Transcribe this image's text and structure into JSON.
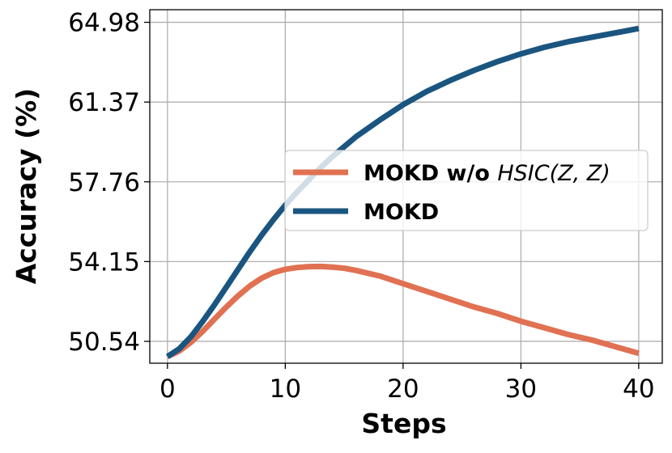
{
  "chart_data": {
    "type": "line",
    "title": "",
    "xlabel": "Steps",
    "ylabel": "Accuracy (%)",
    "xlim": [
      -1.5,
      42
    ],
    "ylim": [
      49.55,
      65.55
    ],
    "xticks": [
      0,
      10,
      20,
      30,
      40
    ],
    "yticks": [
      50.54,
      54.15,
      57.76,
      61.37,
      64.98
    ],
    "ytick_labels": [
      "50.54",
      "54.15",
      "57.76",
      "61.37",
      "64.98"
    ],
    "grid": true,
    "legend_position": "center-right",
    "series": [
      {
        "name": "MOKD w/o HSIC(Z, Z)",
        "legend_bold": "MOKD w/o ",
        "legend_math": "HSIC(Z, Z)",
        "color": "#E07152",
        "x": [
          0,
          1,
          2,
          3,
          4,
          5,
          6,
          7,
          8,
          9,
          10,
          11,
          12,
          13,
          14,
          15,
          16,
          18,
          20,
          22,
          24,
          26,
          28,
          30,
          32,
          34,
          36,
          38,
          40
        ],
        "y": [
          49.85,
          50.1,
          50.5,
          51.0,
          51.55,
          52.1,
          52.6,
          53.05,
          53.4,
          53.65,
          53.8,
          53.88,
          53.92,
          53.93,
          53.9,
          53.85,
          53.75,
          53.5,
          53.15,
          52.8,
          52.45,
          52.1,
          51.8,
          51.45,
          51.15,
          50.85,
          50.6,
          50.3,
          50.0
        ]
      },
      {
        "name": "MOKD",
        "legend_bold": "MOKD",
        "legend_math": "",
        "color": "#1A5580",
        "x": [
          0,
          1,
          2,
          3,
          4,
          5,
          6,
          7,
          8,
          9,
          10,
          11,
          12,
          13,
          14,
          15,
          16,
          18,
          20,
          22,
          24,
          26,
          28,
          30,
          32,
          34,
          36,
          38,
          40
        ],
        "y": [
          49.85,
          50.2,
          50.75,
          51.45,
          52.2,
          53.0,
          53.8,
          54.6,
          55.35,
          56.05,
          56.7,
          57.3,
          57.85,
          58.4,
          58.9,
          59.35,
          59.8,
          60.55,
          61.25,
          61.85,
          62.35,
          62.8,
          63.2,
          63.55,
          63.85,
          64.1,
          64.3,
          64.5,
          64.7
        ]
      }
    ]
  }
}
